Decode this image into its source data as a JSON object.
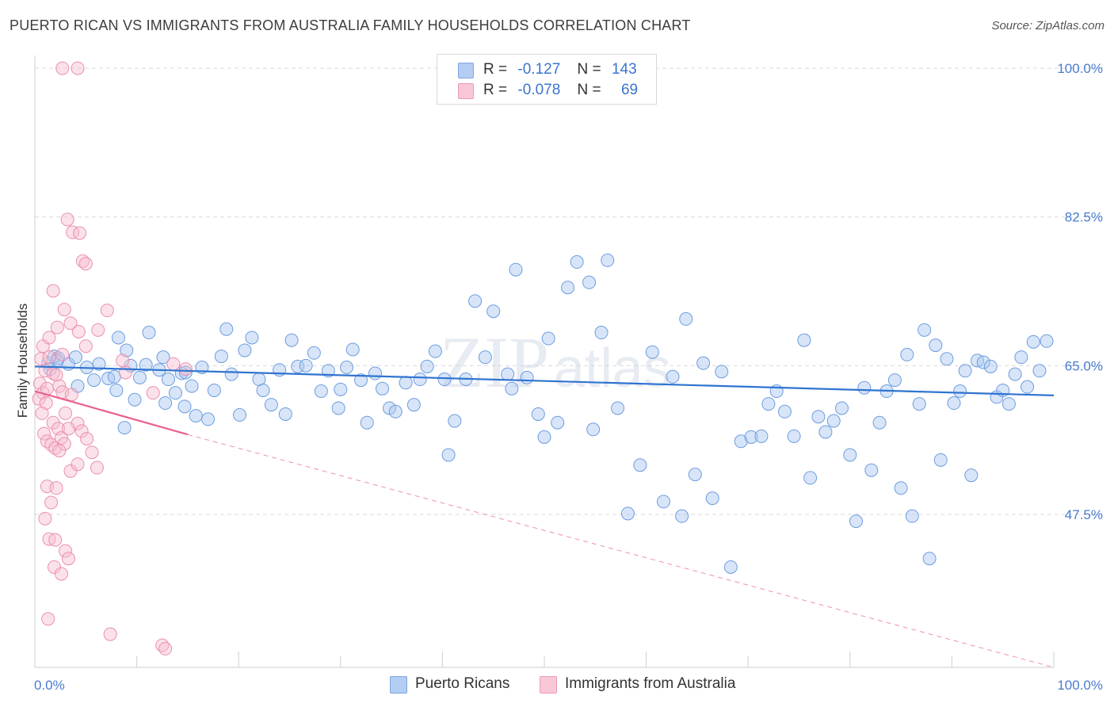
{
  "title": "PUERTO RICAN VS IMMIGRANTS FROM AUSTRALIA FAMILY HOUSEHOLDS CORRELATION CHART",
  "source": "Source: ZipAtlas.com",
  "watermark": {
    "part1": "ZIP",
    "part2": "atlas"
  },
  "colors": {
    "blue_fill": "#a9c6ef",
    "blue_stroke": "#6d9de0",
    "blue_line": "#2f74d0",
    "pink_fill": "#f6bfd0",
    "pink_stroke": "#ec8fae",
    "pink_line": "#e8628f",
    "tick_text": "#4a7bd0",
    "grid": "#d9d9d9"
  },
  "legend": {
    "series1": {
      "r_label": "R =",
      "r_value": "-0.127",
      "n_label": "N =",
      "n_value": "143"
    },
    "series2": {
      "r_label": "R =",
      "r_value": "-0.078",
      "n_label": "N =",
      "n_value": "69"
    }
  },
  "bottom_legend": {
    "series1": "Puerto Ricans",
    "series2": "Immigrants from Australia"
  },
  "chart_data": {
    "type": "scatter",
    "xlabel": "",
    "ylabel": "Family Households",
    "xlim": [
      0,
      100
    ],
    "ylim": [
      29.5,
      101.5
    ],
    "x_tick_labels": [
      "0.0%",
      "100.0%"
    ],
    "y_ticks": [
      47.5,
      65.0,
      82.5,
      100.0
    ],
    "y_tick_labels": [
      "47.5%",
      "65.0%",
      "82.5%",
      "100.0%"
    ],
    "series": [
      {
        "name": "Puerto Ricans",
        "color": "#a9c6ef",
        "trend": {
          "x": [
            0,
            100
          ],
          "y": [
            64.9,
            61.5
          ]
        },
        "points": [
          [
            1.3,
            65.3
          ],
          [
            1.9,
            66.1
          ],
          [
            2.3,
            65.9
          ],
          [
            1.5,
            64.6
          ],
          [
            3.3,
            65.2
          ],
          [
            2.2,
            65.6
          ],
          [
            4.0,
            66.0
          ],
          [
            5.1,
            64.8
          ],
          [
            4.2,
            62.6
          ],
          [
            6.3,
            65.2
          ],
          [
            7.2,
            63.5
          ],
          [
            5.8,
            63.3
          ],
          [
            8.0,
            62.1
          ],
          [
            7.8,
            63.7
          ],
          [
            9.0,
            66.8
          ],
          [
            8.2,
            68.3
          ],
          [
            9.4,
            65.0
          ],
          [
            8.8,
            57.7
          ],
          [
            10.3,
            63.6
          ],
          [
            9.8,
            61.0
          ],
          [
            11.2,
            68.9
          ],
          [
            10.9,
            65.1
          ],
          [
            12.6,
            66.0
          ],
          [
            12.2,
            64.5
          ],
          [
            13.1,
            63.4
          ],
          [
            13.8,
            61.8
          ],
          [
            12.8,
            60.6
          ],
          [
            14.4,
            64.1
          ],
          [
            14.7,
            60.2
          ],
          [
            15.4,
            62.6
          ],
          [
            14.8,
            64.2
          ],
          [
            15.8,
            59.1
          ],
          [
            16.4,
            64.8
          ],
          [
            17.0,
            58.7
          ],
          [
            17.6,
            62.1
          ],
          [
            18.3,
            66.1
          ],
          [
            18.8,
            69.3
          ],
          [
            19.3,
            64.0
          ],
          [
            20.1,
            59.2
          ],
          [
            20.6,
            66.8
          ],
          [
            21.3,
            68.3
          ],
          [
            22.0,
            63.4
          ],
          [
            22.4,
            62.1
          ],
          [
            23.2,
            60.4
          ],
          [
            24.0,
            64.5
          ],
          [
            24.6,
            59.3
          ],
          [
            25.2,
            68.0
          ],
          [
            25.8,
            64.9
          ],
          [
            26.6,
            65.0
          ],
          [
            27.4,
            66.5
          ],
          [
            28.1,
            62.0
          ],
          [
            28.8,
            64.4
          ],
          [
            29.8,
            60.0
          ],
          [
            30.6,
            64.8
          ],
          [
            30.0,
            62.2
          ],
          [
            31.2,
            66.9
          ],
          [
            32.0,
            63.3
          ],
          [
            32.6,
            58.3
          ],
          [
            33.4,
            64.1
          ],
          [
            34.1,
            62.3
          ],
          [
            34.8,
            60.0
          ],
          [
            35.4,
            59.6
          ],
          [
            36.4,
            63.0
          ],
          [
            37.2,
            60.4
          ],
          [
            37.8,
            63.4
          ],
          [
            38.5,
            64.9
          ],
          [
            39.3,
            66.7
          ],
          [
            40.2,
            63.4
          ],
          [
            40.6,
            54.5
          ],
          [
            41.2,
            58.5
          ],
          [
            42.3,
            63.4
          ],
          [
            43.2,
            72.6
          ],
          [
            44.2,
            66.0
          ],
          [
            45.0,
            71.4
          ],
          [
            46.4,
            64.0
          ],
          [
            46.8,
            62.3
          ],
          [
            47.2,
            76.3
          ],
          [
            48.3,
            63.6
          ],
          [
            49.4,
            59.3
          ],
          [
            50.0,
            56.6
          ],
          [
            50.4,
            68.2
          ],
          [
            51.3,
            58.3
          ],
          [
            52.3,
            74.2
          ],
          [
            53.2,
            77.2
          ],
          [
            54.4,
            74.8
          ],
          [
            54.8,
            57.5
          ],
          [
            55.6,
            68.9
          ],
          [
            56.2,
            77.4
          ],
          [
            57.2,
            60.0
          ],
          [
            58.2,
            47.6
          ],
          [
            59.4,
            53.3
          ],
          [
            60.6,
            66.6
          ],
          [
            61.7,
            49.0
          ],
          [
            62.6,
            63.7
          ],
          [
            63.5,
            47.3
          ],
          [
            63.9,
            70.5
          ],
          [
            64.8,
            52.2
          ],
          [
            65.6,
            65.3
          ],
          [
            66.5,
            49.4
          ],
          [
            67.4,
            64.3
          ],
          [
            68.3,
            41.3
          ],
          [
            69.3,
            56.1
          ],
          [
            70.3,
            56.6
          ],
          [
            71.3,
            56.7
          ],
          [
            72.0,
            60.5
          ],
          [
            72.8,
            62.0
          ],
          [
            73.6,
            59.6
          ],
          [
            74.5,
            56.7
          ],
          [
            75.5,
            68.0
          ],
          [
            76.1,
            51.8
          ],
          [
            76.9,
            59.0
          ],
          [
            77.6,
            57.2
          ],
          [
            78.4,
            58.5
          ],
          [
            79.2,
            60.0
          ],
          [
            80.0,
            54.5
          ],
          [
            80.6,
            46.7
          ],
          [
            81.4,
            62.4
          ],
          [
            82.1,
            52.7
          ],
          [
            82.9,
            58.3
          ],
          [
            83.6,
            62.0
          ],
          [
            84.4,
            63.3
          ],
          [
            85.0,
            50.6
          ],
          [
            85.6,
            66.3
          ],
          [
            86.1,
            47.3
          ],
          [
            86.8,
            60.5
          ],
          [
            87.3,
            69.2
          ],
          [
            87.8,
            42.3
          ],
          [
            88.4,
            67.4
          ],
          [
            88.9,
            53.9
          ],
          [
            89.5,
            65.8
          ],
          [
            90.2,
            60.6
          ],
          [
            90.8,
            62.0
          ],
          [
            91.3,
            64.4
          ],
          [
            91.9,
            52.1
          ],
          [
            92.5,
            65.6
          ],
          [
            93.1,
            65.4
          ],
          [
            93.8,
            64.9
          ],
          [
            94.4,
            61.3
          ],
          [
            95.0,
            62.1
          ],
          [
            95.6,
            60.5
          ],
          [
            96.2,
            64.0
          ],
          [
            96.8,
            66.0
          ],
          [
            97.4,
            62.5
          ],
          [
            98.0,
            67.8
          ],
          [
            98.6,
            64.4
          ],
          [
            99.3,
            67.9
          ]
        ]
      },
      {
        "name": "Immigrants from Australia",
        "color": "#f6bfd0",
        "trend": {
          "x": [
            0,
            15
          ],
          "y": [
            62.0,
            56.9
          ],
          "dashed_to": [
            100,
            29.5
          ]
        },
        "points": [
          [
            2.7,
            100.0
          ],
          [
            4.2,
            100.0
          ],
          [
            0.6,
            65.8
          ],
          [
            1.0,
            64.4
          ],
          [
            0.5,
            62.9
          ],
          [
            0.8,
            61.8
          ],
          [
            0.4,
            61.1
          ],
          [
            1.1,
            60.6
          ],
          [
            0.7,
            59.4
          ],
          [
            1.4,
            66.0
          ],
          [
            1.8,
            64.1
          ],
          [
            1.2,
            62.3
          ],
          [
            2.1,
            63.9
          ],
          [
            2.4,
            62.6
          ],
          [
            2.7,
            61.9
          ],
          [
            0.9,
            57.0
          ],
          [
            1.2,
            56.1
          ],
          [
            1.6,
            55.7
          ],
          [
            2.0,
            55.3
          ],
          [
            1.8,
            58.3
          ],
          [
            2.3,
            57.6
          ],
          [
            2.6,
            56.5
          ],
          [
            2.9,
            55.8
          ],
          [
            3.0,
            59.4
          ],
          [
            3.6,
            61.6
          ],
          [
            4.2,
            58.2
          ],
          [
            4.6,
            57.3
          ],
          [
            5.1,
            56.4
          ],
          [
            5.6,
            54.8
          ],
          [
            6.1,
            53.0
          ],
          [
            2.4,
            55.0
          ],
          [
            3.3,
            57.6
          ],
          [
            0.8,
            67.3
          ],
          [
            1.4,
            68.3
          ],
          [
            2.2,
            69.5
          ],
          [
            2.7,
            66.3
          ],
          [
            3.5,
            70.0
          ],
          [
            4.3,
            69.0
          ],
          [
            5.0,
            67.3
          ],
          [
            6.2,
            69.2
          ],
          [
            7.1,
            71.5
          ],
          [
            8.6,
            65.6
          ],
          [
            3.2,
            82.2
          ],
          [
            3.7,
            80.7
          ],
          [
            4.4,
            80.6
          ],
          [
            4.7,
            77.3
          ],
          [
            5.0,
            77.0
          ],
          [
            1.8,
            73.8
          ],
          [
            2.9,
            71.6
          ],
          [
            1.2,
            50.8
          ],
          [
            1.6,
            48.9
          ],
          [
            2.1,
            50.6
          ],
          [
            3.5,
            52.6
          ],
          [
            4.2,
            53.4
          ],
          [
            1.0,
            47.0
          ],
          [
            1.4,
            44.6
          ],
          [
            2.0,
            44.5
          ],
          [
            3.0,
            43.2
          ],
          [
            3.3,
            42.3
          ],
          [
            1.9,
            41.3
          ],
          [
            2.6,
            40.5
          ],
          [
            1.3,
            35.2
          ],
          [
            7.4,
            33.4
          ],
          [
            12.5,
            32.1
          ],
          [
            12.8,
            31.7
          ],
          [
            8.9,
            64.2
          ],
          [
            11.6,
            61.8
          ],
          [
            13.6,
            65.2
          ],
          [
            14.8,
            64.6
          ]
        ]
      }
    ]
  }
}
